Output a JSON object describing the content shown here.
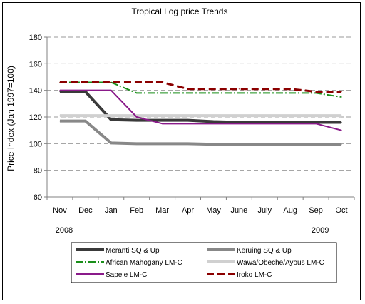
{
  "chart_data": {
    "type": "line",
    "title": "Tropical Log price Trends",
    "xlabel": "",
    "ylabel": "Price Index (Jan 1997=100)",
    "categories": [
      "Nov",
      "Dec",
      "Jan",
      "Feb",
      "Mar",
      "Apr",
      "May",
      "June",
      "July",
      "Aug",
      "Sep",
      "Oct"
    ],
    "year_labels": [
      {
        "text": "2008",
        "category": "Nov"
      },
      {
        "text": "2009",
        "category": "Sep"
      }
    ],
    "ylim": [
      60,
      180
    ],
    "yticks": [
      60,
      80,
      100,
      120,
      140,
      160,
      180
    ],
    "grid": true,
    "legend_position": "bottom",
    "series": [
      {
        "name": "Meranti SQ & Up",
        "color": "#3a3a3a",
        "style": "solid-thick",
        "values": [
          139,
          139,
          118,
          117.5,
          117.5,
          117.5,
          116.5,
          116,
          116,
          116,
          116,
          116
        ]
      },
      {
        "name": "Keruing SQ & Up",
        "color": "#888888",
        "style": "solid-thick",
        "values": [
          117,
          117,
          100.5,
          100,
          100,
          100,
          99.5,
          99.5,
          99.5,
          99.5,
          99.5,
          99.5
        ]
      },
      {
        "name": "African Mahogany LM-C",
        "color": "#1a8f1a",
        "style": "dash-dot",
        "values": [
          146,
          146,
          146,
          138,
          138,
          138,
          138,
          138,
          138,
          138,
          138,
          135
        ]
      },
      {
        "name": "Wawa/Obeche/Ayous LM-C",
        "color": "#d0d0d0",
        "style": "solid-thick",
        "values": [
          121,
          121,
          121,
          121,
          121,
          121,
          121,
          121,
          121,
          121,
          121,
          121
        ]
      },
      {
        "name": "Sapele LM-C",
        "color": "#8a1a8a",
        "style": "solid",
        "values": [
          140,
          140,
          140,
          120,
          115,
          115,
          115,
          115,
          115,
          115,
          115,
          110
        ]
      },
      {
        "name": "Iroko LM-C",
        "color": "#8b0000",
        "style": "dashed",
        "values": [
          146,
          146,
          146,
          146,
          146,
          141,
          141,
          141,
          141,
          141,
          139,
          139
        ]
      }
    ]
  }
}
